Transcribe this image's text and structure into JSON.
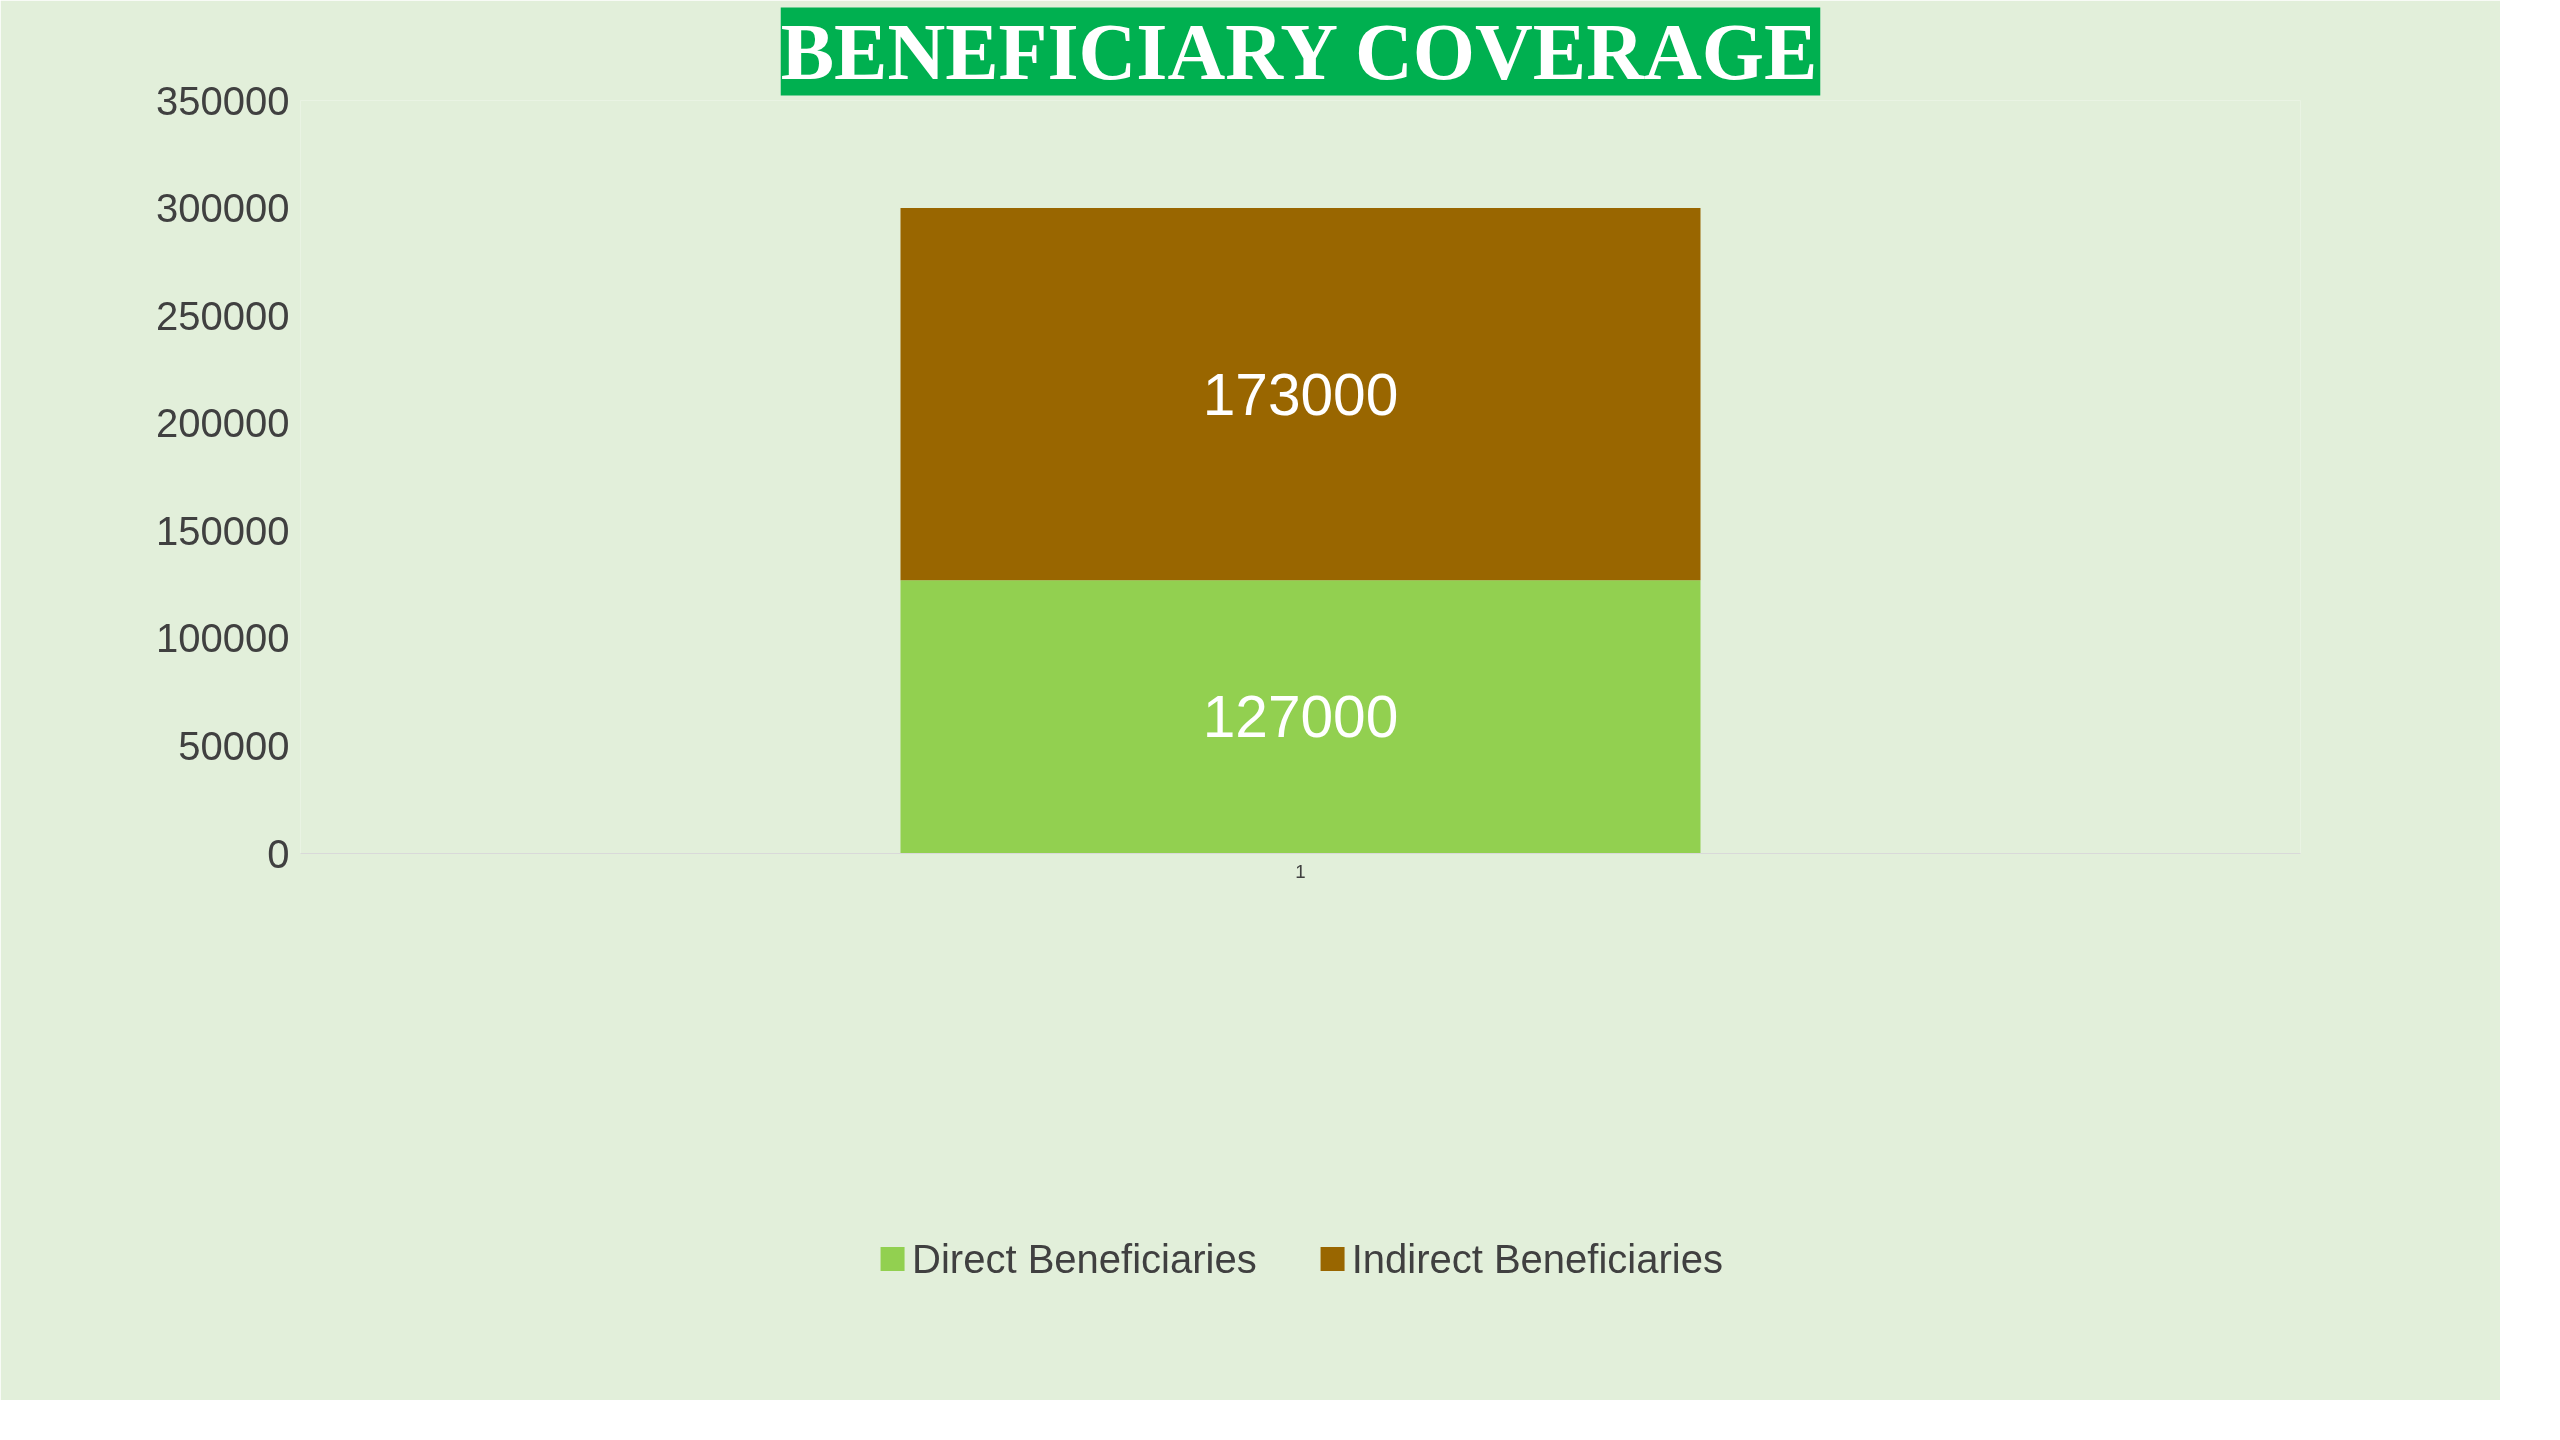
{
  "chart_data": {
    "type": "bar",
    "title": "BENEFICIARY COVERAGE",
    "categories": [
      "1"
    ],
    "stacked": true,
    "series": [
      {
        "name": "Direct Beneficiaries",
        "color": "#92d050",
        "values": [
          127000
        ]
      },
      {
        "name": "Indirect Beneficiaries",
        "color": "#996600",
        "values": [
          173000
        ]
      }
    ],
    "ylim": [
      0,
      350000
    ],
    "yticks": [
      0,
      50000,
      100000,
      150000,
      200000,
      250000,
      300000,
      350000
    ],
    "grid": false,
    "legend": "bottom",
    "data_labels": true
  }
}
